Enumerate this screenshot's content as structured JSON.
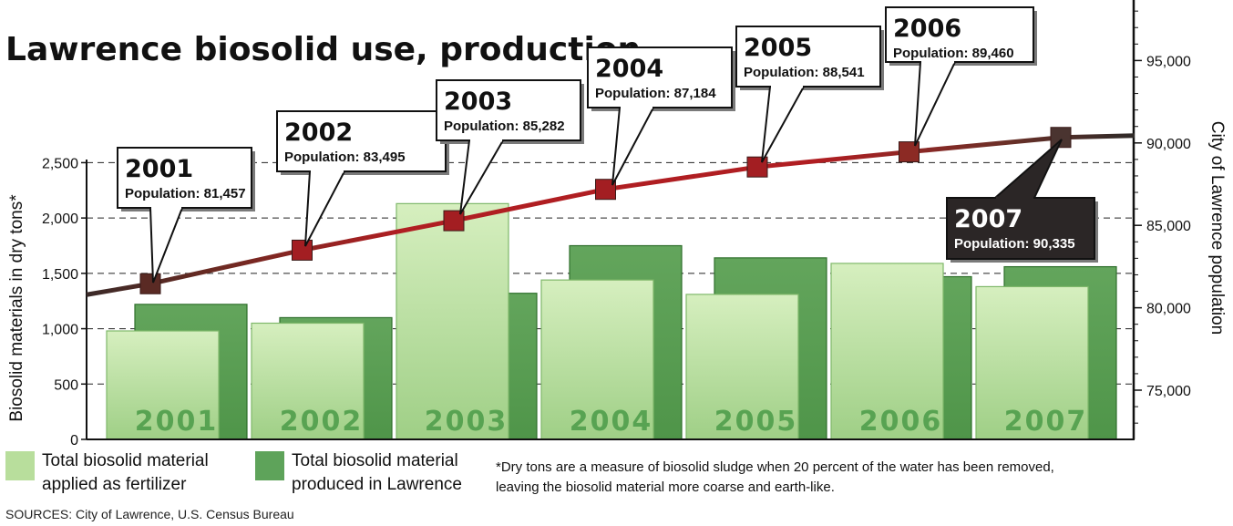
{
  "title": "Lawrence biosolid use, production",
  "chart_data": {
    "type": "bar",
    "categories": [
      "2001",
      "2002",
      "2003",
      "2004",
      "2005",
      "2006",
      "2007"
    ],
    "series": [
      {
        "name": "Total biosolid material applied as fertilizer",
        "color": "#b8de9c",
        "values": [
          980,
          1050,
          2130,
          1440,
          1310,
          1590,
          1380
        ]
      },
      {
        "name": "Total biosolid material produced in Lawrence",
        "color": "#5ea35a",
        "values": [
          1220,
          1100,
          1320,
          1750,
          1640,
          1470,
          1560
        ]
      }
    ],
    "line_series": {
      "name": "City of Lawrence population",
      "color": "#a31e22",
      "values": [
        81457,
        83495,
        85282,
        87184,
        88541,
        89460,
        90335
      ],
      "population_labels": [
        "Population: 81,457",
        "Population: 83,495",
        "Population: 85,282",
        "Population: 87,184",
        "Population: 88,541",
        "Population: 89,460",
        "Population: 90,335"
      ]
    },
    "ylabel": "Biosolid materials in dry tons*",
    "y2label": "City of Lawrence population",
    "ylim": [
      0,
      2800
    ],
    "y2lim": [
      72500,
      98500
    ],
    "yticks": [
      {
        "value": 0,
        "label": "0"
      },
      {
        "value": 500,
        "label": "500"
      },
      {
        "value": 1000,
        "label": "1,000"
      },
      {
        "value": 1500,
        "label": "1,500"
      },
      {
        "value": 2000,
        "label": "2,000"
      },
      {
        "value": 2500,
        "label": "2,500"
      }
    ],
    "y2ticks": [
      {
        "value": 75000,
        "label": "75,000"
      },
      {
        "value": 80000,
        "label": "80,000"
      },
      {
        "value": 85000,
        "label": "85,000"
      },
      {
        "value": 90000,
        "label": "90,000"
      },
      {
        "value": 95000,
        "label": "95,000"
      }
    ],
    "grid": "dashed horizontal",
    "legend_position": "bottom-left"
  },
  "legend": {
    "fertilizer_line1": "Total biosolid material",
    "fertilizer_line2": "applied as fertilizer",
    "produced_line1": "Total biosolid material",
    "produced_line2": "produced in Lawrence"
  },
  "note": {
    "line1": "*Dry tons are a measure of biosolid sludge when 20 percent of the water has been removed,",
    "line2": "leaving the biosolid material more coarse and earth-like."
  },
  "sources": "SOURCES: City of Lawrence, U.S. Census Bureau"
}
